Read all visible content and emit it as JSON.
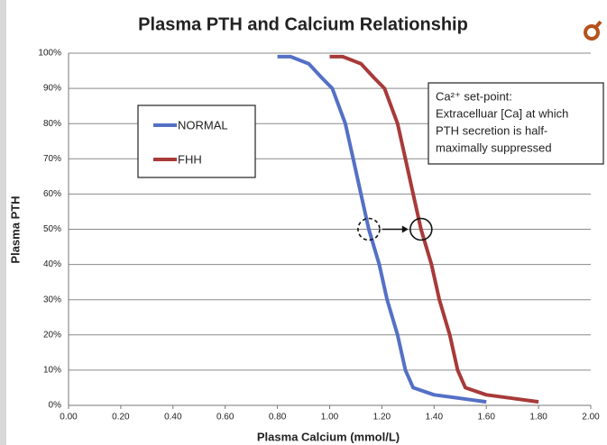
{
  "chart_data": {
    "type": "line",
    "title": "Plasma PTH and Calcium Relationship",
    "xlabel": "Plasma Calcium (mmol/L)",
    "ylabel": "Plasma PTH",
    "xlim": [
      0,
      2
    ],
    "ylim": [
      0,
      100
    ],
    "xticks": [
      {
        "value": 0,
        "label": "0.00"
      },
      {
        "value": 0.2,
        "label": "0.20"
      },
      {
        "value": 0.4,
        "label": "0.40"
      },
      {
        "value": 0.6,
        "label": "0.60"
      },
      {
        "value": 0.8,
        "label": "0.80"
      },
      {
        "value": 1,
        "label": "1.00"
      },
      {
        "value": 1.2,
        "label": "1.20"
      },
      {
        "value": 1.4,
        "label": "1.40"
      },
      {
        "value": 1.6,
        "label": "1.60"
      },
      {
        "value": 1.8,
        "label": "1.80"
      },
      {
        "value": 2,
        "label": "2.00"
      }
    ],
    "yticks": [
      {
        "value": 0,
        "label": "0%"
      },
      {
        "value": 10,
        "label": "10%"
      },
      {
        "value": 20,
        "label": "20%"
      },
      {
        "value": 30,
        "label": "30%"
      },
      {
        "value": 40,
        "label": "40%"
      },
      {
        "value": 50,
        "label": "50%"
      },
      {
        "value": 60,
        "label": "60%"
      },
      {
        "value": 70,
        "label": "70%"
      },
      {
        "value": 80,
        "label": "80%"
      },
      {
        "value": 90,
        "label": "90%"
      },
      {
        "value": 100,
        "label": "100%"
      }
    ],
    "grid": true,
    "series": [
      {
        "name": "NORMAL",
        "color": "#5470c6",
        "x": [
          0.8,
          0.85,
          0.92,
          0.97,
          1.01,
          1.06,
          1.09,
          1.12,
          1.15,
          1.19,
          1.22,
          1.26,
          1.29,
          1.32,
          1.4,
          1.5,
          1.6
        ],
        "values": [
          99,
          99,
          97,
          93,
          90,
          80,
          70,
          60,
          50,
          40,
          30,
          20,
          10,
          5,
          3,
          2,
          1
        ]
      },
      {
        "name": "FHH",
        "color": "#a83a3a",
        "x": [
          1.0,
          1.05,
          1.12,
          1.17,
          1.21,
          1.26,
          1.29,
          1.32,
          1.35,
          1.39,
          1.42,
          1.46,
          1.49,
          1.52,
          1.6,
          1.7,
          1.8
        ],
        "values": [
          99,
          99,
          97,
          93,
          90,
          80,
          70,
          60,
          50,
          40,
          30,
          20,
          10,
          5,
          3,
          2,
          1
        ]
      }
    ],
    "annotation": [
      "Ca²⁺ set-point:",
      "Extracelluar [Ca] at which",
      "PTH secretion is half-",
      "maximally suppressed"
    ]
  }
}
